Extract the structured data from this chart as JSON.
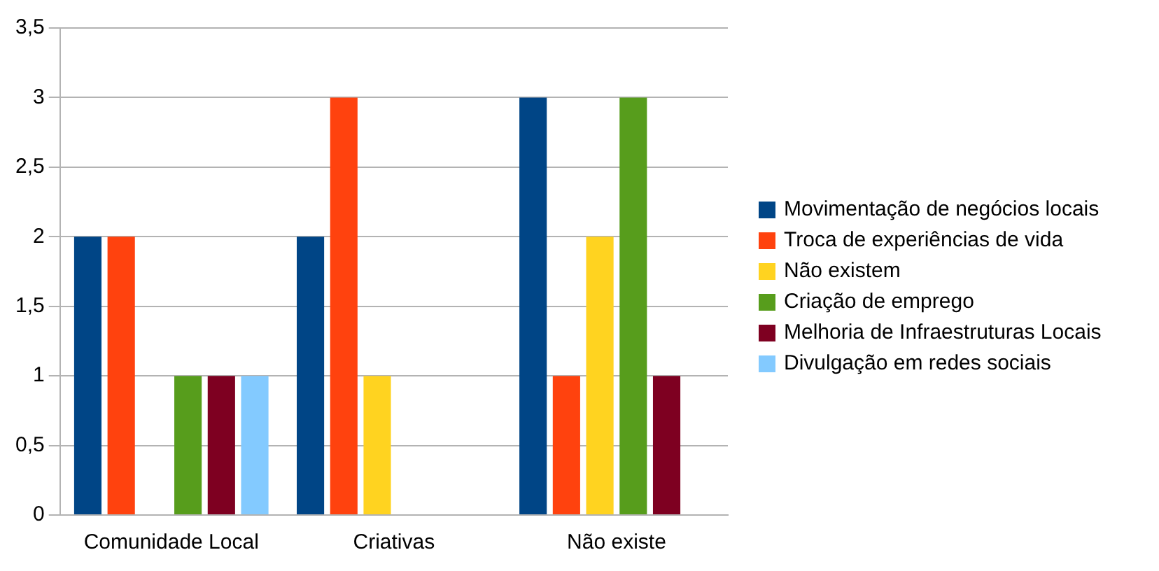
{
  "chart_data": {
    "type": "bar",
    "categories": [
      "Comunidade Local",
      "Criativas",
      "Não existe"
    ],
    "series": [
      {
        "name": "Movimentação de negócios locais",
        "color": "#004586",
        "values": [
          2,
          2,
          3
        ]
      },
      {
        "name": "Troca de experiências de vida",
        "color": "#ff420e",
        "values": [
          2,
          3,
          1
        ]
      },
      {
        "name": "Não existem",
        "color": "#ffd320",
        "values": [
          0,
          1,
          2
        ]
      },
      {
        "name": "Criação de emprego",
        "color": "#579d1c",
        "values": [
          1,
          0,
          3
        ]
      },
      {
        "name": "Melhoria de Infraestruturas Locais",
        "color": "#7e0021",
        "values": [
          1,
          0,
          1
        ]
      },
      {
        "name": "Divulgação em redes sociais",
        "color": "#83caff",
        "values": [
          1,
          0,
          0
        ]
      }
    ],
    "ylim": [
      0,
      3.5
    ],
    "yticks": [
      0,
      {
        "value": 0.5,
        "label": "0,5"
      },
      1,
      {
        "value": 1.5,
        "label": "1,5"
      },
      2,
      {
        "value": 2.5,
        "label": "2,5"
      },
      3,
      {
        "value": 3.5,
        "label": "3,5"
      }
    ],
    "grid": "y",
    "legend": "right"
  }
}
